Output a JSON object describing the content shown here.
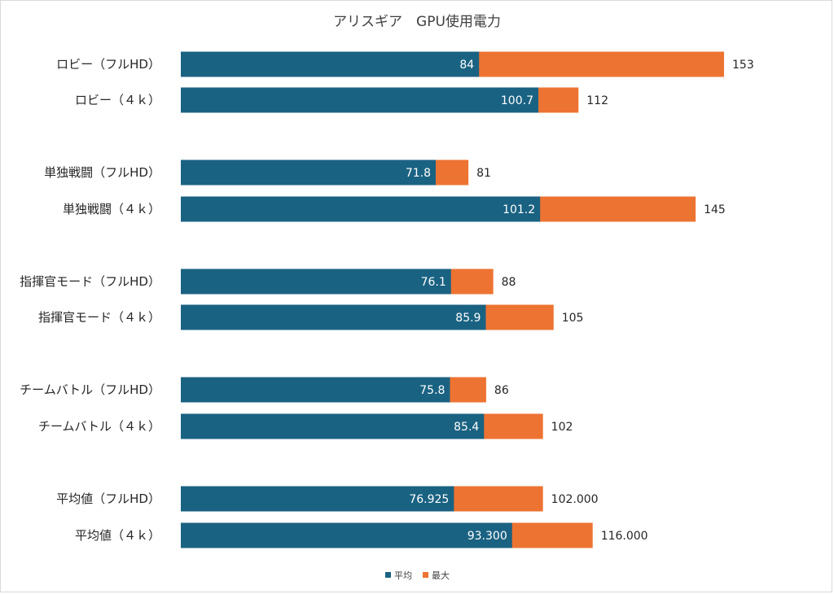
{
  "chart_data": {
    "type": "bar",
    "orientation": "horizontal",
    "stacking": "overlay",
    "title": "アリスギア　GPU使用電力",
    "categories": [
      "ロビー（フルHD）",
      "ロビー（４ｋ）",
      "単独戦闘（フルHD）",
      "単独戦闘（４ｋ）",
      "指揮官モード（フルHD）",
      "指揮官モード（４ｋ）",
      "チームバトル（フルHD）",
      "チームバトル（４ｋ）",
      "平均値（フルHD）",
      "平均値（４ｋ）"
    ],
    "series": [
      {
        "name": "平均",
        "color": "#1a6282",
        "values": [
          84,
          100.7,
          71.8,
          101.2,
          76.1,
          85.9,
          75.8,
          85.4,
          76.925,
          93.3
        ],
        "labels": [
          "84",
          "100.7",
          "71.8",
          "101.2",
          "76.1",
          "85.9",
          "75.8",
          "85.4",
          "76.925",
          "93.300"
        ]
      },
      {
        "name": "最大",
        "color": "#ed7332",
        "values": [
          153,
          112,
          81,
          145,
          88,
          105,
          86,
          102,
          102,
          116
        ],
        "labels": [
          "153",
          "112",
          "81",
          "145",
          "88",
          "105",
          "86",
          "102",
          "102.000",
          "116.000"
        ]
      }
    ],
    "xlim": [
      0,
      160
    ],
    "legend": "bottom",
    "grid": false
  }
}
